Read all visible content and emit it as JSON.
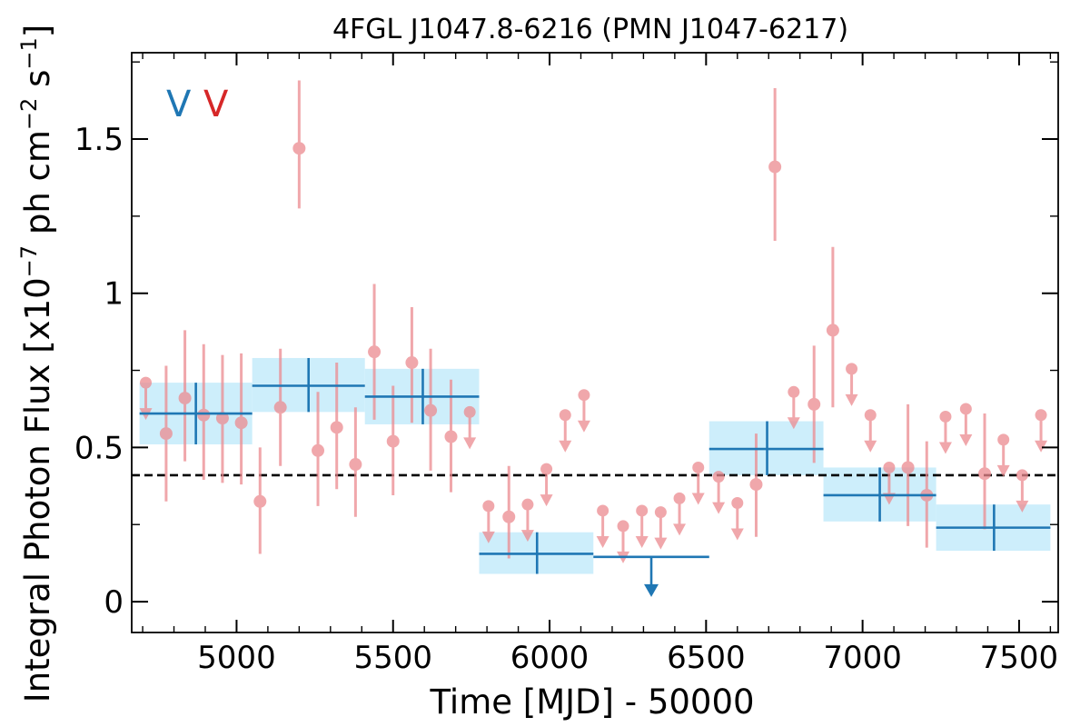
{
  "chart_data": {
    "type": "scatter",
    "title": "4FGL J1047.8-6216 (PMN J1047-6217)",
    "xlabel": "Time [MJD] - 50000",
    "ylabel": "Integral Photon Flux [x10^-7 ph cm^-2 s^-1]",
    "ylabel_main": "Integral Photon Flux [x10",
    "ylabel_exp1": "−7",
    "ylabel_mid": " ph cm",
    "ylabel_exp2": "−2",
    "ylabel_mid2": " s",
    "ylabel_exp3": "−1",
    "ylabel_end": "]",
    "xlim": [
      4665,
      7625
    ],
    "ylim": [
      -0.1,
      1.78
    ],
    "x_ticks": [
      5000,
      5500,
      6000,
      6500,
      7000,
      7500
    ],
    "x_tick_labels": [
      "5000",
      "5500",
      "6000",
      "6500",
      "7000",
      "7500"
    ],
    "y_ticks": [
      0,
      0.5,
      1,
      1.5
    ],
    "y_tick_labels": [
      "0",
      "0.5",
      "1",
      "1.5"
    ],
    "average_flux": 0.41,
    "legend_labels": [
      {
        "text": "V",
        "color": "#1f77b4"
      },
      {
        "text": "V",
        "color": "#d62728"
      }
    ],
    "colors": {
      "long_bin": "#1f77b4",
      "long_band": "#cdeefb",
      "short_bin": "#ec8a8f",
      "average_line": "#000000"
    },
    "series": [
      {
        "style": "long_bins",
        "bins": [
          {
            "x0": 4690,
            "x1": 5050,
            "xc": 4870,
            "y": 0.61,
            "ylo": 0.51,
            "yhi": 0.71
          },
          {
            "x0": 5050,
            "x1": 5410,
            "xc": 5230,
            "y": 0.7,
            "ylo": 0.615,
            "yhi": 0.79
          },
          {
            "x0": 5410,
            "x1": 5775,
            "xc": 5595,
            "y": 0.665,
            "ylo": 0.575,
            "yhi": 0.755
          },
          {
            "x0": 5775,
            "x1": 6140,
            "xc": 5960,
            "y": 0.155,
            "ylo": 0.09,
            "yhi": 0.225
          },
          {
            "x0": 6140,
            "x1": 6510,
            "xc": 6325,
            "y": 0.145,
            "upper_limit": true
          },
          {
            "x0": 6510,
            "x1": 6875,
            "xc": 6695,
            "y": 0.495,
            "ylo": 0.41,
            "yhi": 0.585
          },
          {
            "x0": 6875,
            "x1": 7235,
            "xc": 7055,
            "y": 0.345,
            "ylo": 0.26,
            "yhi": 0.435
          },
          {
            "x0": 7235,
            "x1": 7600,
            "xc": 7420,
            "y": 0.24,
            "ylo": 0.165,
            "yhi": 0.315
          }
        ]
      },
      {
        "style": "short_bins",
        "points": [
          {
            "x": 4710,
            "y": 0.71,
            "ul": true
          },
          {
            "x": 4775,
            "y": 0.545,
            "ylo": 0.325,
            "yhi": 0.765
          },
          {
            "x": 4835,
            "y": 0.66,
            "ylo": 0.455,
            "yhi": 0.88
          },
          {
            "x": 4895,
            "y": 0.605,
            "ylo": 0.395,
            "yhi": 0.835
          },
          {
            "x": 4955,
            "y": 0.595,
            "ylo": 0.385,
            "yhi": 0.8
          },
          {
            "x": 5015,
            "y": 0.58,
            "ylo": 0.38,
            "yhi": 0.805
          },
          {
            "x": 5075,
            "y": 0.325,
            "ylo": 0.155,
            "yhi": 0.5
          },
          {
            "x": 5140,
            "y": 0.63,
            "ylo": 0.44,
            "yhi": 0.82
          },
          {
            "x": 5200,
            "y": 1.47,
            "ylo": 1.275,
            "yhi": 1.69
          },
          {
            "x": 5260,
            "y": 0.49,
            "ylo": 0.31,
            "yhi": 0.68
          },
          {
            "x": 5320,
            "y": 0.565,
            "ylo": 0.365,
            "yhi": 0.775
          },
          {
            "x": 5380,
            "y": 0.445,
            "ylo": 0.275,
            "yhi": 0.63
          },
          {
            "x": 5440,
            "y": 0.81,
            "ylo": 0.59,
            "yhi": 1.03
          },
          {
            "x": 5500,
            "y": 0.52,
            "ylo": 0.345,
            "yhi": 0.7
          },
          {
            "x": 5560,
            "y": 0.775,
            "ylo": 0.58,
            "yhi": 0.955
          },
          {
            "x": 5620,
            "y": 0.62,
            "ylo": 0.425,
            "yhi": 0.82
          },
          {
            "x": 5685,
            "y": 0.535,
            "ylo": 0.355,
            "yhi": 0.72
          },
          {
            "x": 5745,
            "y": 0.615,
            "ul": true
          },
          {
            "x": 5805,
            "y": 0.31,
            "ul": true
          },
          {
            "x": 5870,
            "y": 0.275,
            "ylo": 0.14,
            "yhi": 0.44
          },
          {
            "x": 5930,
            "y": 0.315,
            "ul": true
          },
          {
            "x": 5990,
            "y": 0.43,
            "ul": true
          },
          {
            "x": 6050,
            "y": 0.605,
            "ul": true
          },
          {
            "x": 6110,
            "y": 0.67,
            "ul": true
          },
          {
            "x": 6170,
            "y": 0.295,
            "ul": true
          },
          {
            "x": 6235,
            "y": 0.245,
            "ul": true
          },
          {
            "x": 6295,
            "y": 0.295,
            "ul": true
          },
          {
            "x": 6355,
            "y": 0.29,
            "ul": true
          },
          {
            "x": 6415,
            "y": 0.335,
            "ul": true
          },
          {
            "x": 6475,
            "y": 0.435,
            "ul": true
          },
          {
            "x": 6540,
            "y": 0.405,
            "ul": true
          },
          {
            "x": 6600,
            "y": 0.32,
            "ul": true
          },
          {
            "x": 6660,
            "y": 0.38,
            "ylo": 0.21,
            "yhi": 0.545
          },
          {
            "x": 6720,
            "y": 1.41,
            "ylo": 1.17,
            "yhi": 1.665
          },
          {
            "x": 6780,
            "y": 0.68,
            "ul": true
          },
          {
            "x": 6845,
            "y": 0.64,
            "ylo": 0.45,
            "yhi": 0.83
          },
          {
            "x": 6905,
            "y": 0.88,
            "ylo": 0.63,
            "yhi": 1.15
          },
          {
            "x": 6965,
            "y": 0.755,
            "ul": true
          },
          {
            "x": 7025,
            "y": 0.605,
            "ul": true
          },
          {
            "x": 7085,
            "y": 0.435,
            "ul": true
          },
          {
            "x": 7145,
            "y": 0.435,
            "ylo": 0.245,
            "yhi": 0.64
          },
          {
            "x": 7205,
            "y": 0.345,
            "ylo": 0.175,
            "yhi": 0.52
          },
          {
            "x": 7265,
            "y": 0.6,
            "ul": true
          },
          {
            "x": 7330,
            "y": 0.625,
            "ul": true
          },
          {
            "x": 7390,
            "y": 0.415,
            "ylo": 0.235,
            "yhi": 0.61
          },
          {
            "x": 7450,
            "y": 0.525,
            "ul": true
          },
          {
            "x": 7510,
            "y": 0.41,
            "ul": true
          },
          {
            "x": 7570,
            "y": 0.605,
            "ul": true
          }
        ]
      }
    ]
  }
}
